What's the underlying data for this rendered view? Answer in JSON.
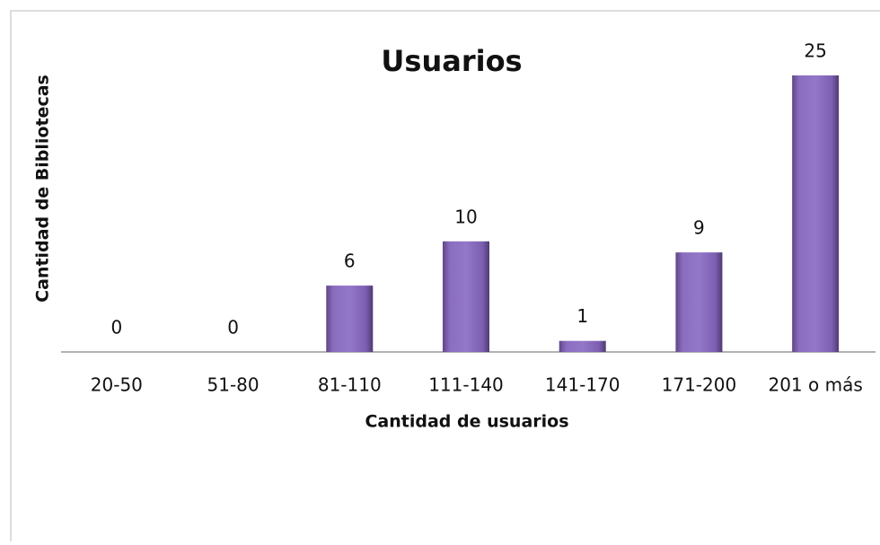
{
  "chart_data": {
    "type": "bar",
    "title": "Usuarios",
    "x_label": "Cantidad de usuarios",
    "y_label": "Cantidad de Bibliotecas",
    "categories": [
      "20-50",
      "51-80",
      "81-110",
      "111-140",
      "141-170",
      "171-200",
      "201 o más"
    ],
    "values": [
      0,
      0,
      6,
      10,
      1,
      9,
      25
    ],
    "color": "#8064a2"
  }
}
